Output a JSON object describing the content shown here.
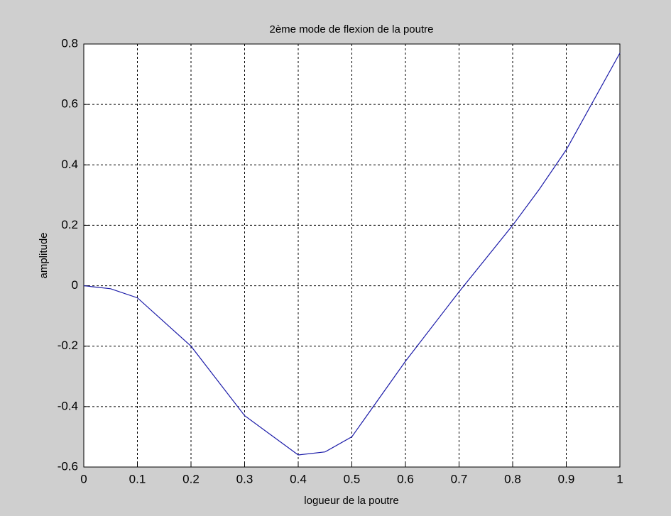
{
  "chart_data": {
    "type": "line",
    "title": "2ème mode de flexion de la poutre",
    "x_label": "logueur de la poutre",
    "y_label": "amplitude",
    "x": [
      0,
      0.05,
      0.1,
      0.2,
      0.3,
      0.4,
      0.45,
      0.5,
      0.6,
      0.7,
      0.8,
      0.85,
      0.9,
      1
    ],
    "series": [
      {
        "name": "amplitude",
        "color": "#1a1aa8",
        "values": [
          0,
          -0.01,
          -0.04,
          -0.2,
          -0.43,
          -0.56,
          -0.55,
          -0.5,
          -0.25,
          -0.02,
          0.2,
          0.32,
          0.45,
          0.77
        ]
      }
    ],
    "xlim": [
      0,
      1
    ],
    "xticks": [
      0,
      0.1,
      0.2,
      0.3,
      0.4,
      0.5,
      0.6,
      0.7,
      0.8,
      0.9,
      1
    ],
    "ylim": [
      -0.6,
      0.8
    ],
    "yticks": [
      -0.6,
      -0.4,
      -0.2,
      0,
      0.2,
      0.4,
      0.6,
      0.8
    ],
    "grid": true
  }
}
